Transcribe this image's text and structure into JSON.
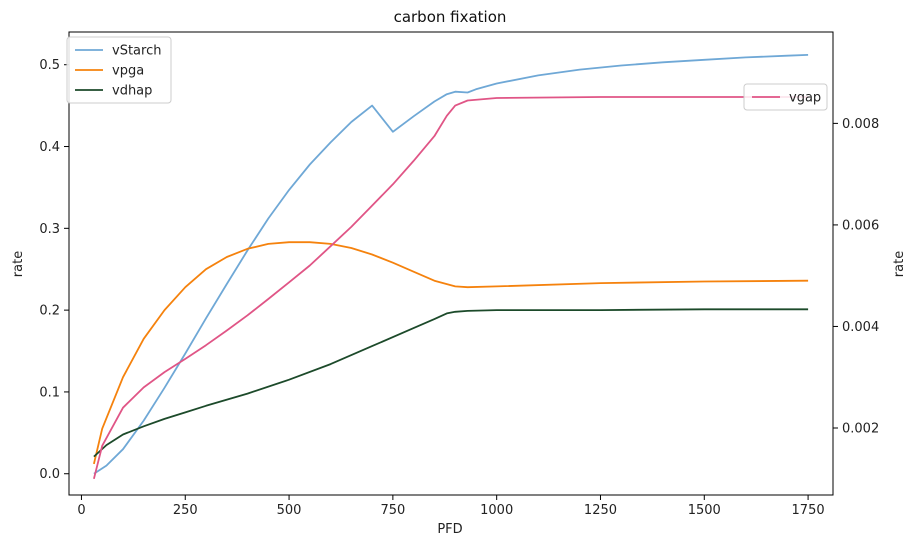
{
  "chart_data": {
    "type": "line",
    "title": "carbon fixation",
    "xlabel": "PFD",
    "ylabel": "rate",
    "y2label": "rate",
    "xlim": [
      -30,
      1810
    ],
    "ylim": [
      -0.026,
      0.54
    ],
    "y2lim": [
      0.00068,
      0.0098
    ],
    "xticks": [
      0,
      250,
      500,
      750,
      1000,
      1250,
      1500,
      1750
    ],
    "yticks": [
      0.0,
      0.1,
      0.2,
      0.3,
      0.4,
      0.5
    ],
    "ytick_labels": [
      "0.0",
      "0.1",
      "0.2",
      "0.3",
      "0.4",
      "0.5"
    ],
    "y2ticks": [
      0.002,
      0.004,
      0.006,
      0.008
    ],
    "y2tick_labels": [
      "0.002",
      "0.004",
      "0.006",
      "0.008"
    ],
    "grid": false,
    "legend_left": {
      "placement": "upper-left",
      "entries": [
        "vStarch",
        "vpga",
        "vdhap"
      ]
    },
    "legend_right": {
      "placement": "upper-right",
      "entries": [
        "vgap"
      ]
    },
    "series": [
      {
        "name": "vStarch",
        "axis": "left",
        "color": "#6fa8d6",
        "x": [
          30,
          60,
          100,
          150,
          200,
          250,
          300,
          350,
          400,
          450,
          500,
          550,
          600,
          650,
          700,
          750,
          800,
          850,
          880,
          900,
          930,
          950,
          1000,
          1100,
          1200,
          1300,
          1400,
          1500,
          1600,
          1700,
          1750
        ],
        "y": [
          0.0,
          0.01,
          0.03,
          0.065,
          0.105,
          0.147,
          0.19,
          0.232,
          0.273,
          0.312,
          0.347,
          0.378,
          0.405,
          0.43,
          0.45,
          0.418,
          0.437,
          0.455,
          0.464,
          0.467,
          0.466,
          0.47,
          0.477,
          0.487,
          0.494,
          0.499,
          0.503,
          0.506,
          0.509,
          0.511,
          0.512
        ]
      },
      {
        "name": "vpga",
        "axis": "left",
        "color": "#f5820d",
        "x": [
          30,
          50,
          100,
          150,
          200,
          250,
          300,
          350,
          400,
          450,
          500,
          550,
          600,
          650,
          700,
          750,
          800,
          850,
          900,
          930,
          1000,
          1250,
          1500,
          1750
        ],
        "y": [
          0.012,
          0.055,
          0.118,
          0.165,
          0.2,
          0.228,
          0.25,
          0.265,
          0.275,
          0.281,
          0.283,
          0.283,
          0.281,
          0.276,
          0.268,
          0.258,
          0.247,
          0.236,
          0.229,
          0.228,
          0.229,
          0.233,
          0.235,
          0.236
        ]
      },
      {
        "name": "vdhap",
        "axis": "left",
        "color": "#1c4a2a",
        "x": [
          30,
          60,
          100,
          150,
          200,
          250,
          300,
          400,
          500,
          600,
          700,
          800,
          850,
          880,
          900,
          930,
          1000,
          1250,
          1500,
          1750
        ],
        "y": [
          0.021,
          0.035,
          0.048,
          0.058,
          0.067,
          0.075,
          0.083,
          0.098,
          0.115,
          0.134,
          0.156,
          0.178,
          0.189,
          0.196,
          0.198,
          0.199,
          0.2,
          0.2,
          0.201,
          0.201
        ]
      },
      {
        "name": "vgap",
        "axis": "right",
        "color": "#e05586",
        "x": [
          30,
          50,
          100,
          150,
          200,
          250,
          300,
          350,
          400,
          450,
          500,
          550,
          600,
          650,
          700,
          750,
          800,
          850,
          880,
          900,
          930,
          1000,
          1250,
          1500,
          1750
        ],
        "y": [
          0.001,
          0.00165,
          0.0024,
          0.0028,
          0.0031,
          0.00336,
          0.00363,
          0.00392,
          0.00422,
          0.00454,
          0.00487,
          0.0052,
          0.00558,
          0.00596,
          0.00638,
          0.0068,
          0.00726,
          0.00775,
          0.00815,
          0.00835,
          0.00845,
          0.0085,
          0.00852,
          0.00852,
          0.00852
        ]
      }
    ]
  }
}
